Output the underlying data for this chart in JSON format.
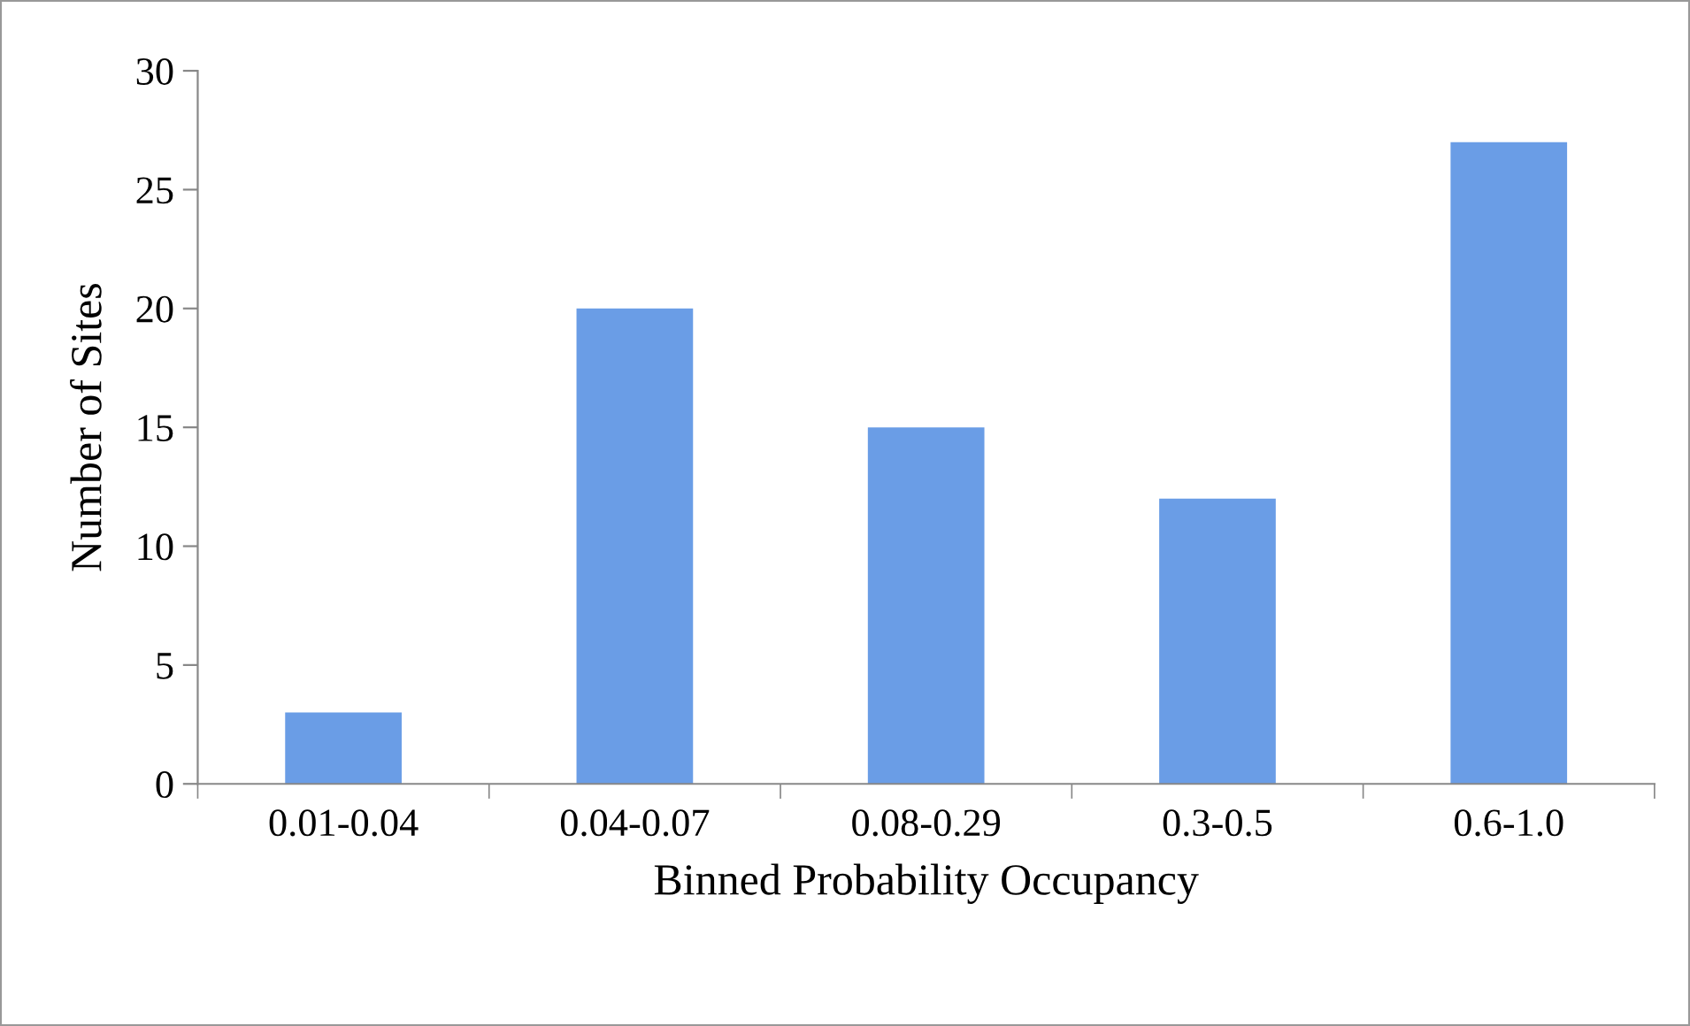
{
  "chart_data": {
    "type": "bar",
    "xlabel": "Binned Probability Occupancy",
    "ylabel": "Number of Sites",
    "categories": [
      "0.01-0.04",
      "0.04-0.07",
      "0.08-0.29",
      "0.3-0.5",
      "0.6-1.0"
    ],
    "values": [
      3,
      20,
      15,
      12,
      27
    ],
    "color": "#6a9de6",
    "ylim": [
      0,
      30
    ],
    "yticks": [
      0,
      5,
      10,
      15,
      20,
      25,
      30
    ],
    "grid": false,
    "legend": false
  }
}
